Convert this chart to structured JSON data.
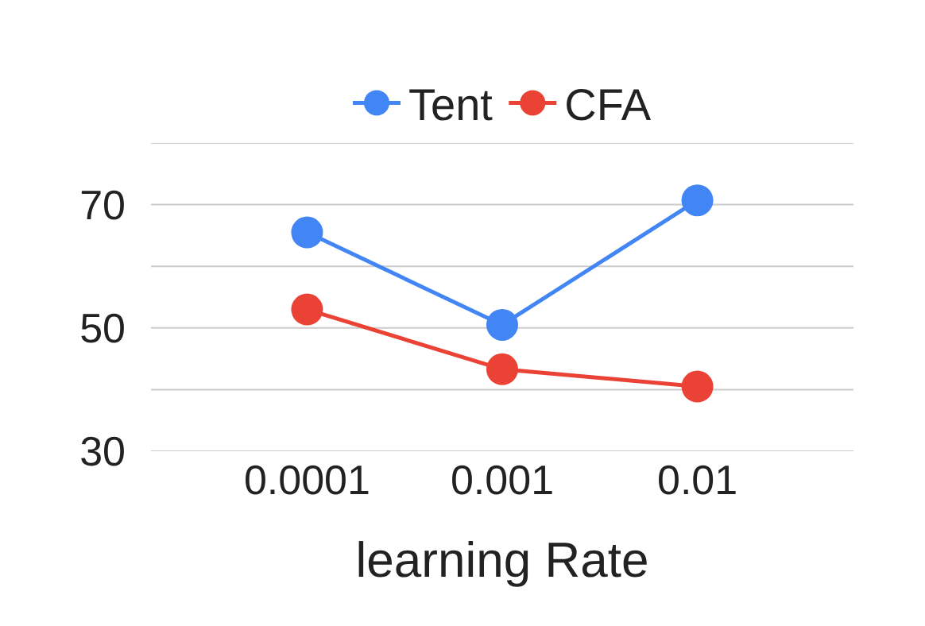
{
  "chart_data": {
    "type": "line",
    "xlabel": "learning Rate",
    "categories": [
      "0.0001",
      "0.001",
      "0.01"
    ],
    "series": [
      {
        "name": "Tent",
        "color": "#4285f4",
        "values": [
          65.5,
          50.5,
          70.7
        ]
      },
      {
        "name": "CFA",
        "color": "#ea4335",
        "values": [
          53,
          43.3,
          40.5
        ]
      }
    ],
    "ylim": [
      30,
      80
    ],
    "yticks": [
      30,
      {
        "value": 40,
        "label": null
      },
      50,
      {
        "value": 60,
        "label": null
      },
      70,
      {
        "value": 80,
        "label": null
      }
    ],
    "grid": "y",
    "legend": "top",
    "marker": "circle",
    "line_style": "solid"
  }
}
